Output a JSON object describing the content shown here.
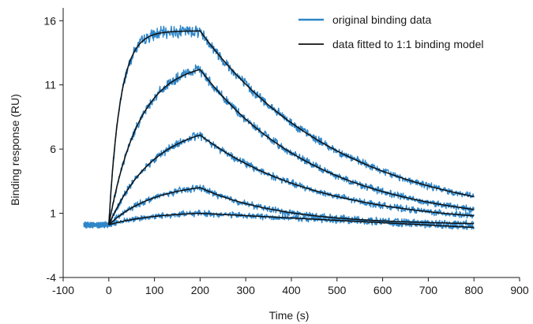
{
  "chart_data": {
    "type": "line",
    "xlabel": "Time (s)",
    "ylabel": "Binding response (RU)",
    "xlim": [
      -100,
      900
    ],
    "ylim": [
      -4,
      17
    ],
    "x_ticks": [
      -100,
      0,
      100,
      200,
      300,
      400,
      500,
      600,
      700,
      800,
      900
    ],
    "y_ticks": [
      -4,
      1,
      6,
      11,
      16
    ],
    "grid": false,
    "legend": {
      "placement": "top-right",
      "entries": [
        {
          "label": "original binding data",
          "color": "#2f86c8"
        },
        {
          "label": "data fitted to 1:1 binding model",
          "color": "#111111"
        }
      ]
    },
    "baseline": 0.1,
    "injection_start": 0,
    "injection_end": 200,
    "x_start": -55,
    "x_end": 800,
    "curves": [
      {
        "peak": 15.2,
        "end": 2.3,
        "association_rate": 0.04
      },
      {
        "peak": 12.2,
        "end": 1.3,
        "association_rate": 0.015
      },
      {
        "peak": 7.1,
        "end": 0.8,
        "association_rate": 0.01
      },
      {
        "peak": 3.0,
        "end": 0.2,
        "association_rate": 0.01
      },
      {
        "peak": 1.0,
        "end": -0.1,
        "association_rate": 0.01
      }
    ]
  },
  "colors": {
    "data": "#2f86c8",
    "fit": "#111111"
  }
}
